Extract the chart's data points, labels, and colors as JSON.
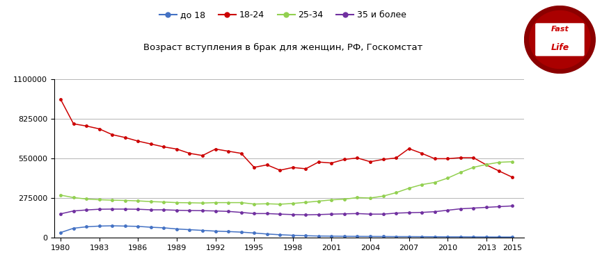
{
  "title": "Возраст вступления в брак для женщин, РФ, Госкомстат",
  "legend_labels": [
    "до 18",
    "18-24",
    "25-34",
    "35 и более"
  ],
  "colors": [
    "#4472C4",
    "#CC0000",
    "#92D050",
    "#7030A0"
  ],
  "ylim": [
    0,
    1100000
  ],
  "yticks": [
    0,
    275000,
    550000,
    825000,
    1100000
  ],
  "years": [
    1980,
    1981,
    1982,
    1983,
    1984,
    1985,
    1986,
    1987,
    1988,
    1989,
    1990,
    1991,
    1992,
    1993,
    1994,
    1995,
    1996,
    1997,
    1998,
    1999,
    2000,
    2001,
    2002,
    2003,
    2004,
    2005,
    2006,
    2007,
    2008,
    2009,
    2010,
    2011,
    2012,
    2013,
    2014,
    2015
  ],
  "series_do18": [
    35000,
    65000,
    75000,
    80000,
    82000,
    80000,
    78000,
    72000,
    68000,
    60000,
    55000,
    50000,
    45000,
    42000,
    38000,
    32000,
    25000,
    20000,
    16000,
    13000,
    11000,
    10000,
    9000,
    8500,
    8000,
    7500,
    7000,
    7000,
    6500,
    6000,
    5500,
    5500,
    5000,
    4500,
    4000,
    4000
  ],
  "series_18_24": [
    960000,
    790000,
    775000,
    755000,
    715000,
    695000,
    670000,
    650000,
    630000,
    615000,
    585000,
    570000,
    615000,
    600000,
    585000,
    488000,
    505000,
    468000,
    487000,
    478000,
    525000,
    518000,
    543000,
    553000,
    527000,
    543000,
    553000,
    618000,
    585000,
    548000,
    548000,
    555000,
    555000,
    505000,
    462000,
    420000
  ],
  "series_25_34": [
    295000,
    278000,
    268000,
    263000,
    260000,
    258000,
    255000,
    250000,
    247000,
    243000,
    242000,
    240000,
    243000,
    243000,
    243000,
    233000,
    235000,
    232000,
    237000,
    245000,
    253000,
    262000,
    267000,
    278000,
    275000,
    288000,
    312000,
    343000,
    368000,
    383000,
    413000,
    453000,
    488000,
    508000,
    523000,
    527000
  ],
  "series_35plus": [
    165000,
    185000,
    192000,
    197000,
    198000,
    198000,
    197000,
    193000,
    193000,
    190000,
    188000,
    187000,
    185000,
    182000,
    175000,
    167000,
    167000,
    163000,
    160000,
    158000,
    160000,
    163000,
    165000,
    167000,
    163000,
    163000,
    170000,
    173000,
    175000,
    180000,
    190000,
    200000,
    205000,
    210000,
    215000,
    220000
  ],
  "background_color": "#FFFFFF",
  "grid_color": "#AAAAAA",
  "xtick_years": [
    1980,
    1983,
    1986,
    1989,
    1992,
    1995,
    1998,
    2001,
    2004,
    2007,
    2010,
    2013,
    2015
  ]
}
